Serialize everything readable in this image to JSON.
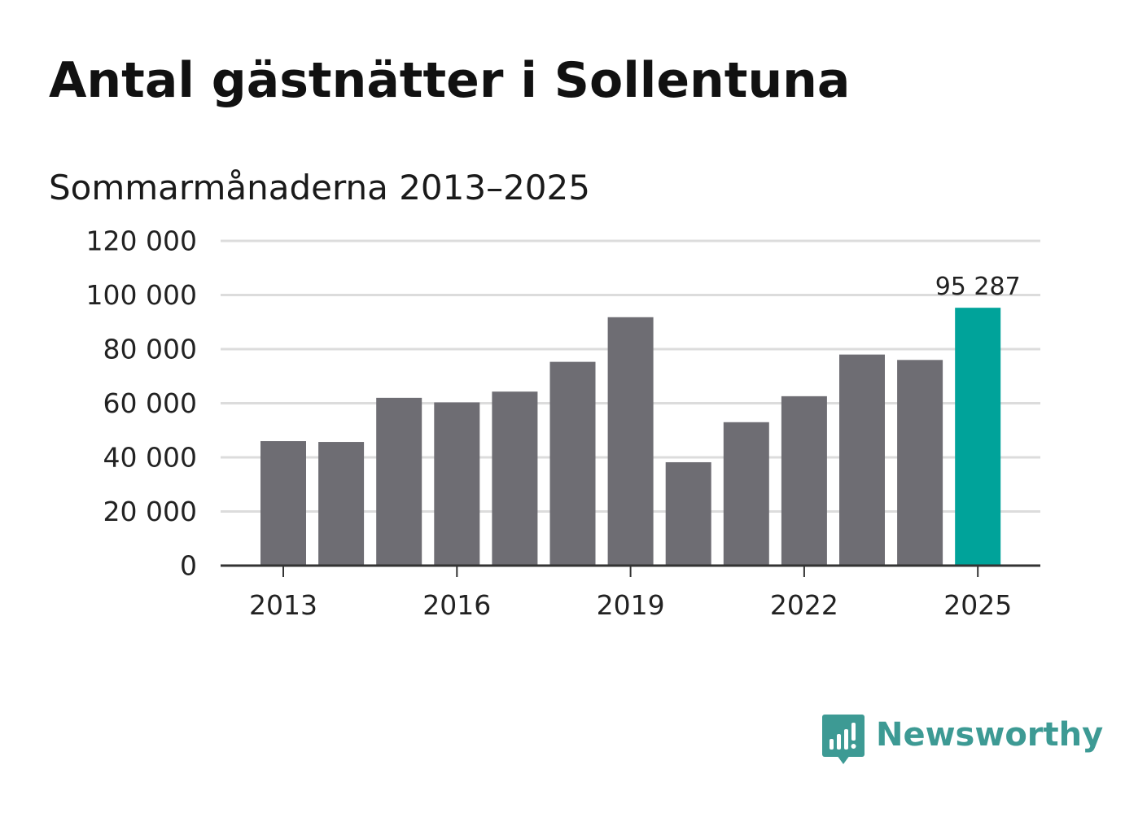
{
  "title": "Antal gästnätter i Sollentuna",
  "subtitle": "Sommarmånaderna 2013–2025",
  "brand": {
    "name": "Newsworthy",
    "color": "#3d9a94",
    "icon": "newsworthy-logo-icon"
  },
  "colors": {
    "bar": "#6e6d73",
    "highlight": "#00a39a",
    "grid": "#dcdcdc",
    "axis": "#333333"
  },
  "chart_data": {
    "type": "bar",
    "title": "Antal gästnätter i Sollentuna",
    "subtitle": "Sommarmånaderna 2013–2025",
    "xlabel": "",
    "ylabel": "",
    "categories": [
      "2013",
      "2014",
      "2015",
      "2016",
      "2017",
      "2018",
      "2019",
      "2020",
      "2021",
      "2022",
      "2023",
      "2024",
      "2025"
    ],
    "values": [
      46000,
      45700,
      62000,
      60300,
      64300,
      75300,
      91800,
      38200,
      53000,
      62600,
      78000,
      76000,
      95287
    ],
    "highlight_index": 12,
    "highlight_label": "95 287",
    "xticks": [
      "2013",
      "2016",
      "2019",
      "2022",
      "2025"
    ],
    "yticks": [
      0,
      20000,
      40000,
      60000,
      80000,
      100000,
      120000
    ],
    "ytick_labels": [
      "0",
      "20 000",
      "40 000",
      "60 000",
      "80 000",
      "100 000",
      "120 000"
    ],
    "ylim": [
      0,
      120000
    ],
    "grid": true,
    "legend": false
  }
}
